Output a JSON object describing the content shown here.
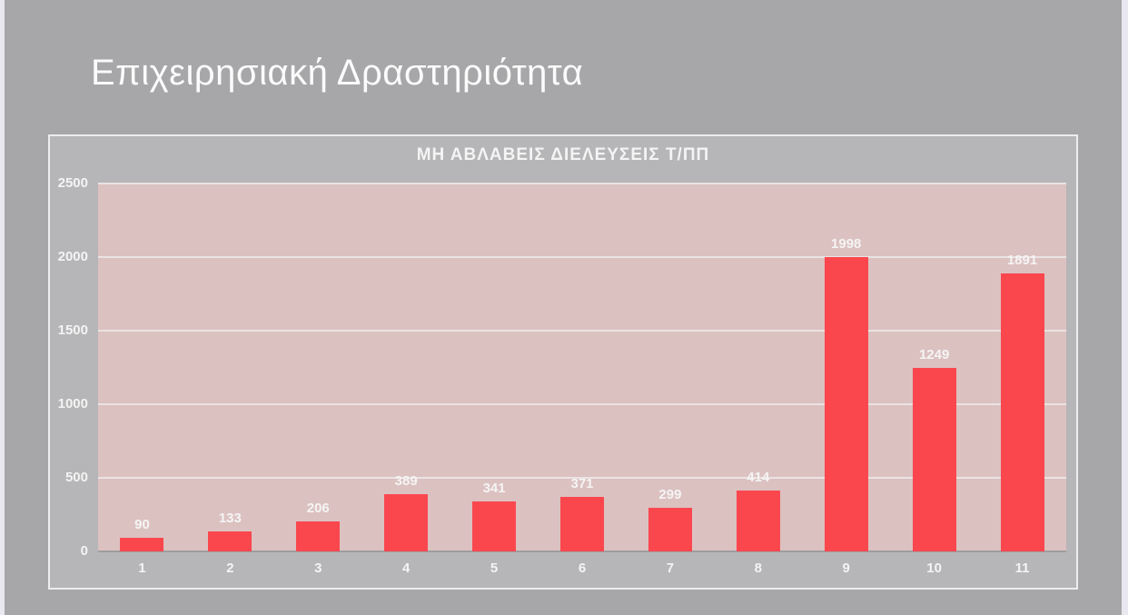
{
  "slide": {
    "title": "Επιχειρησιακή Δραστηριότητα"
  },
  "chart_data": {
    "type": "bar",
    "title": "ΜΗ ΑΒΛΑΒΕΙΣ ΔΙΕΛΕΥΣΕΙΣ Τ/ΠΠ",
    "categories": [
      "1",
      "2",
      "3",
      "4",
      "5",
      "6",
      "7",
      "8",
      "9",
      "10",
      "11"
    ],
    "values": [
      90,
      133,
      206,
      389,
      341,
      371,
      299,
      414,
      1998,
      1249,
      1891
    ],
    "data_labels_shown": true,
    "xlabel": "",
    "ylabel": "",
    "ylim": [
      0,
      2500
    ],
    "yticks": [
      0,
      500,
      1000,
      1500,
      2000,
      2500
    ],
    "grid": "horizontal",
    "legend": "none"
  },
  "colors": {
    "background": "#a7a6a8",
    "edge_strip": "#e9e8f0",
    "frame_fill": "#b6b5b7",
    "frame_border": "#ededed",
    "plot_fill": "#dcc1c1",
    "bar": "#fa474e",
    "gridline": "#eae3e3",
    "axis_line": "#9e9d9f",
    "text": "#f5f4f4"
  }
}
